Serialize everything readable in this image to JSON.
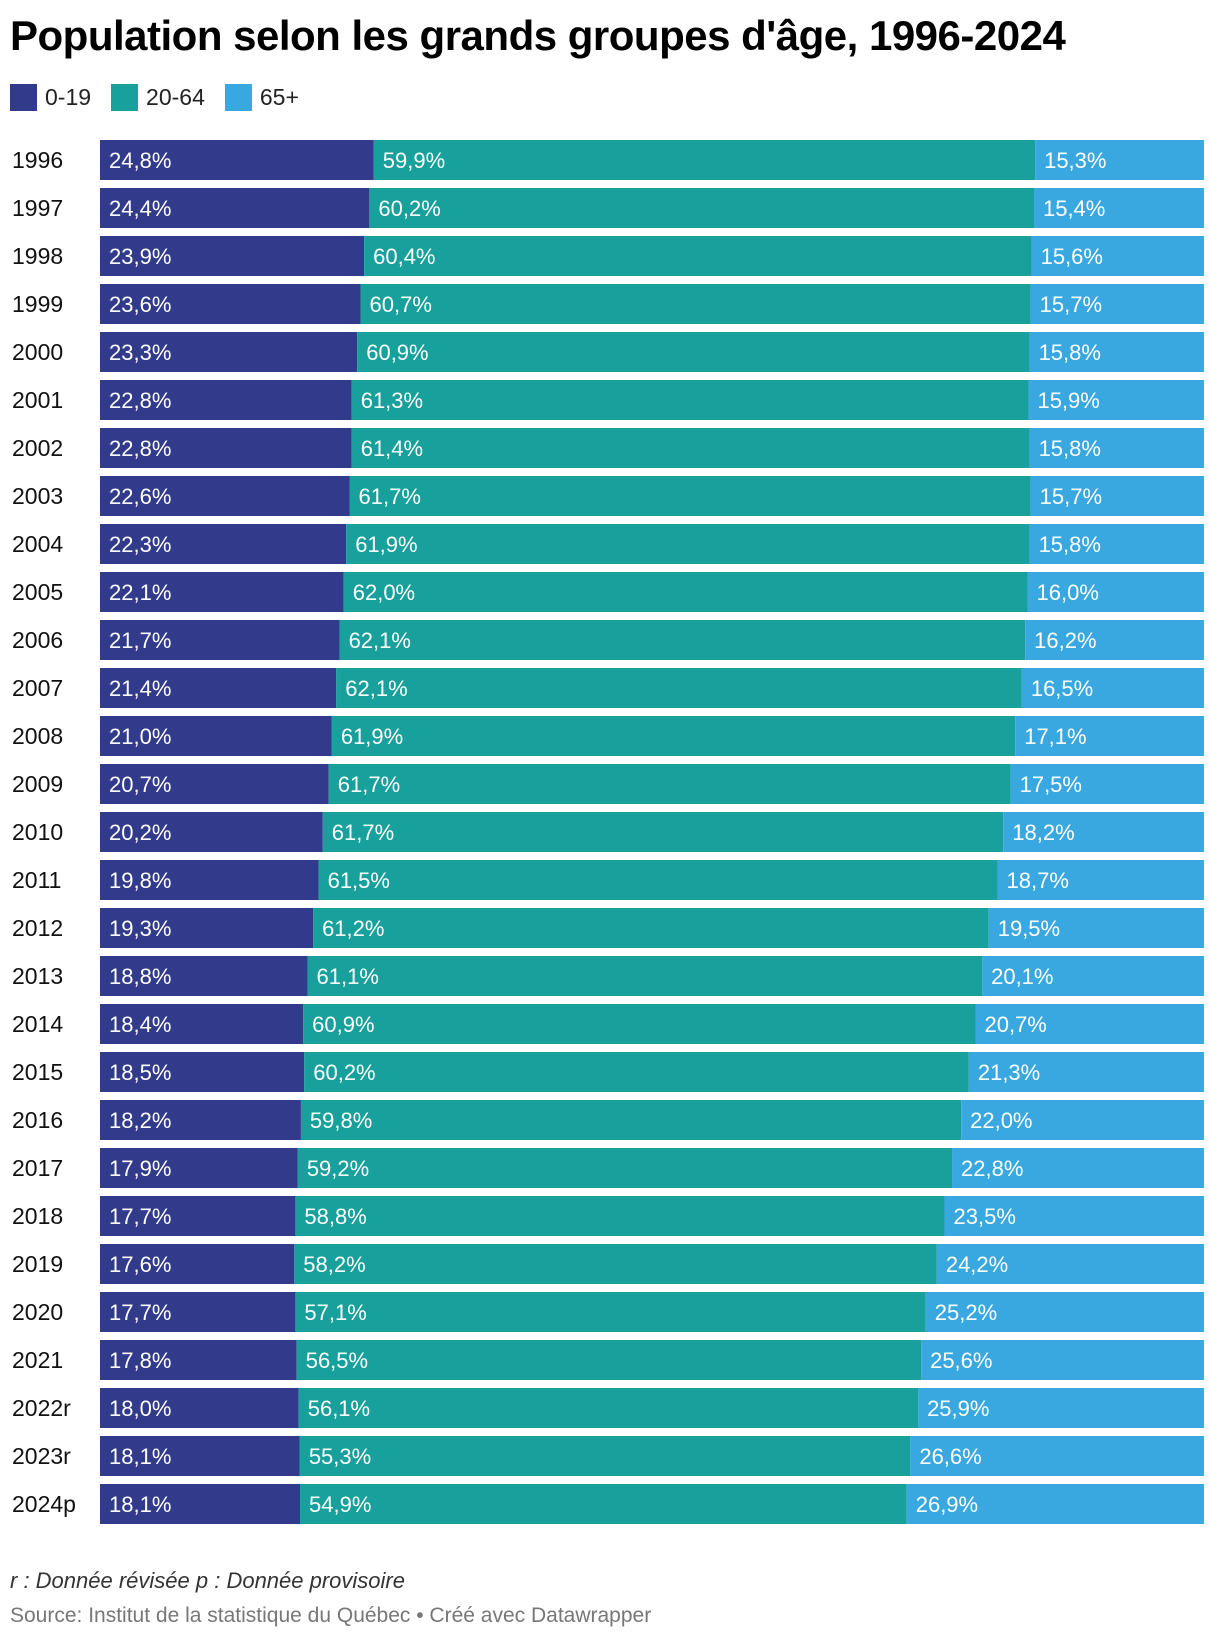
{
  "chart_data": {
    "type": "bar",
    "orientation": "horizontal",
    "stacked": true,
    "title": "Population selon les grands groupes d'âge, 1996-2024",
    "categories": [
      "1996",
      "1997",
      "1998",
      "1999",
      "2000",
      "2001",
      "2002",
      "2003",
      "2004",
      "2005",
      "2006",
      "2007",
      "2008",
      "2009",
      "2010",
      "2011",
      "2012",
      "2013",
      "2014",
      "2015",
      "2016",
      "2017",
      "2018",
      "2019",
      "2020",
      "2021",
      "2022r",
      "2023r",
      "2024p"
    ],
    "series": [
      {
        "name": "0-19",
        "color": "#323a8b",
        "values": [
          24.8,
          24.4,
          23.9,
          23.6,
          23.3,
          22.8,
          22.8,
          22.6,
          22.3,
          22.1,
          21.7,
          21.4,
          21.0,
          20.7,
          20.2,
          19.8,
          19.3,
          18.8,
          18.4,
          18.5,
          18.2,
          17.9,
          17.7,
          17.6,
          17.7,
          17.8,
          18.0,
          18.1,
          18.1
        ],
        "labels": [
          "24,8%",
          "24,4%",
          "23,9%",
          "23,6%",
          "23,3%",
          "22,8%",
          "22,8%",
          "22,6%",
          "22,3%",
          "22,1%",
          "21,7%",
          "21,4%",
          "21,0%",
          "20,7%",
          "20,2%",
          "19,8%",
          "19,3%",
          "18,8%",
          "18,4%",
          "18,5%",
          "18,2%",
          "17,9%",
          "17,7%",
          "17,6%",
          "17,7%",
          "17,8%",
          "18,0%",
          "18,1%",
          "18,1%"
        ]
      },
      {
        "name": "20-64",
        "color": "#17a09c",
        "values": [
          59.9,
          60.2,
          60.4,
          60.7,
          60.9,
          61.3,
          61.4,
          61.7,
          61.9,
          62.0,
          62.1,
          62.1,
          61.9,
          61.7,
          61.7,
          61.5,
          61.2,
          61.1,
          60.9,
          60.2,
          59.8,
          59.2,
          58.8,
          58.2,
          57.1,
          56.5,
          56.1,
          55.3,
          54.9
        ],
        "labels": [
          "59,9%",
          "60,2%",
          "60,4%",
          "60,7%",
          "60,9%",
          "61,3%",
          "61,4%",
          "61,7%",
          "61,9%",
          "62,0%",
          "62,1%",
          "62,1%",
          "61,9%",
          "61,7%",
          "61,7%",
          "61,5%",
          "61,2%",
          "61,1%",
          "60,9%",
          "60,2%",
          "59,8%",
          "59,2%",
          "58,8%",
          "58,2%",
          "57,1%",
          "56,5%",
          "56,1%",
          "55,3%",
          "54,9%"
        ]
      },
      {
        "name": "65+",
        "color": "#3aa8e0",
        "values": [
          15.3,
          15.4,
          15.6,
          15.7,
          15.8,
          15.9,
          15.8,
          15.7,
          15.8,
          16.0,
          16.2,
          16.5,
          17.1,
          17.5,
          18.2,
          18.7,
          19.5,
          20.1,
          20.7,
          21.3,
          22.0,
          22.8,
          23.5,
          24.2,
          25.2,
          25.6,
          25.9,
          26.6,
          26.9
        ],
        "labels": [
          "15,3%",
          "15,4%",
          "15,6%",
          "15,7%",
          "15,8%",
          "15,9%",
          "15,8%",
          "15,7%",
          "15,8%",
          "16,0%",
          "16,2%",
          "16,5%",
          "17,1%",
          "17,5%",
          "18,2%",
          "18,7%",
          "19,5%",
          "20,1%",
          "20,7%",
          "21,3%",
          "22,0%",
          "22,8%",
          "23,5%",
          "24,2%",
          "25,2%",
          "25,6%",
          "25,9%",
          "26,6%",
          "26,9%"
        ]
      }
    ],
    "xlim": [
      0,
      100
    ],
    "grid": false,
    "legend_position": "top-left"
  },
  "footer": {
    "note": "r : Donnée révisée p : Donnée provisoire",
    "source": "Source: Institut de la statistique du Québec • Créé avec Datawrapper"
  }
}
